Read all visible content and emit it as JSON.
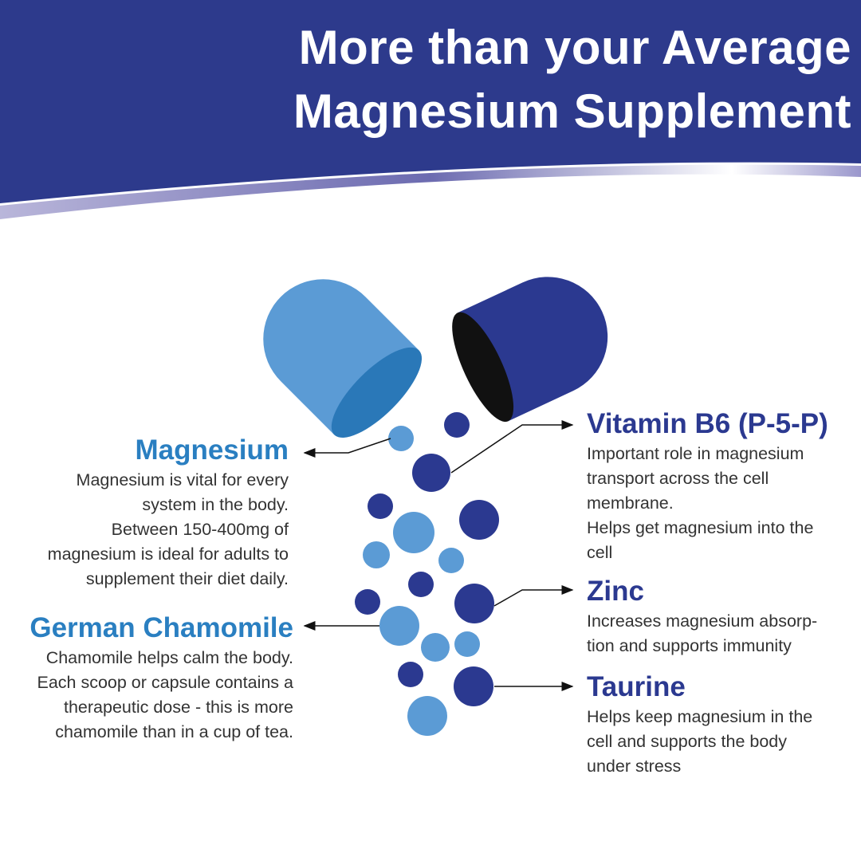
{
  "header": {
    "title_line1": "More than your Average",
    "title_line2": "Magnesium Supplement"
  },
  "colors": {
    "header": "#2d3a8c",
    "light_blue": "#5b9bd5",
    "dark_blue": "#2b3990",
    "magnesium_heading": "#2a7fc1"
  },
  "ingredients": {
    "magnesium": {
      "title": "Magnesium",
      "lines": [
        "Magnesium is vital for every",
        "system in the body.",
        "Between 150-400mg of",
        "magnesium is ideal for adults to",
        "supplement their diet daily."
      ]
    },
    "chamomile": {
      "title": "German Chamomile",
      "lines": [
        "Chamomile helps calm the body.",
        "Each scoop or capsule contains a",
        "therapeutic dose - this is more",
        "chamomile than in a cup of tea."
      ]
    },
    "b6": {
      "title": "Vitamin B6 (P-5-P)",
      "lines": [
        "Important role in magnesium",
        "transport across the cell",
        "membrane.",
        "Helps get magnesium into the",
        "cell"
      ]
    },
    "zinc": {
      "title": "Zinc",
      "lines": [
        "Increases magnesium absorp-",
        "tion and supports immunity"
      ]
    },
    "taurine": {
      "title": "Taurine",
      "lines": [
        "Helps keep magnesium in the",
        "cell and supports the body",
        "under stress"
      ]
    }
  }
}
